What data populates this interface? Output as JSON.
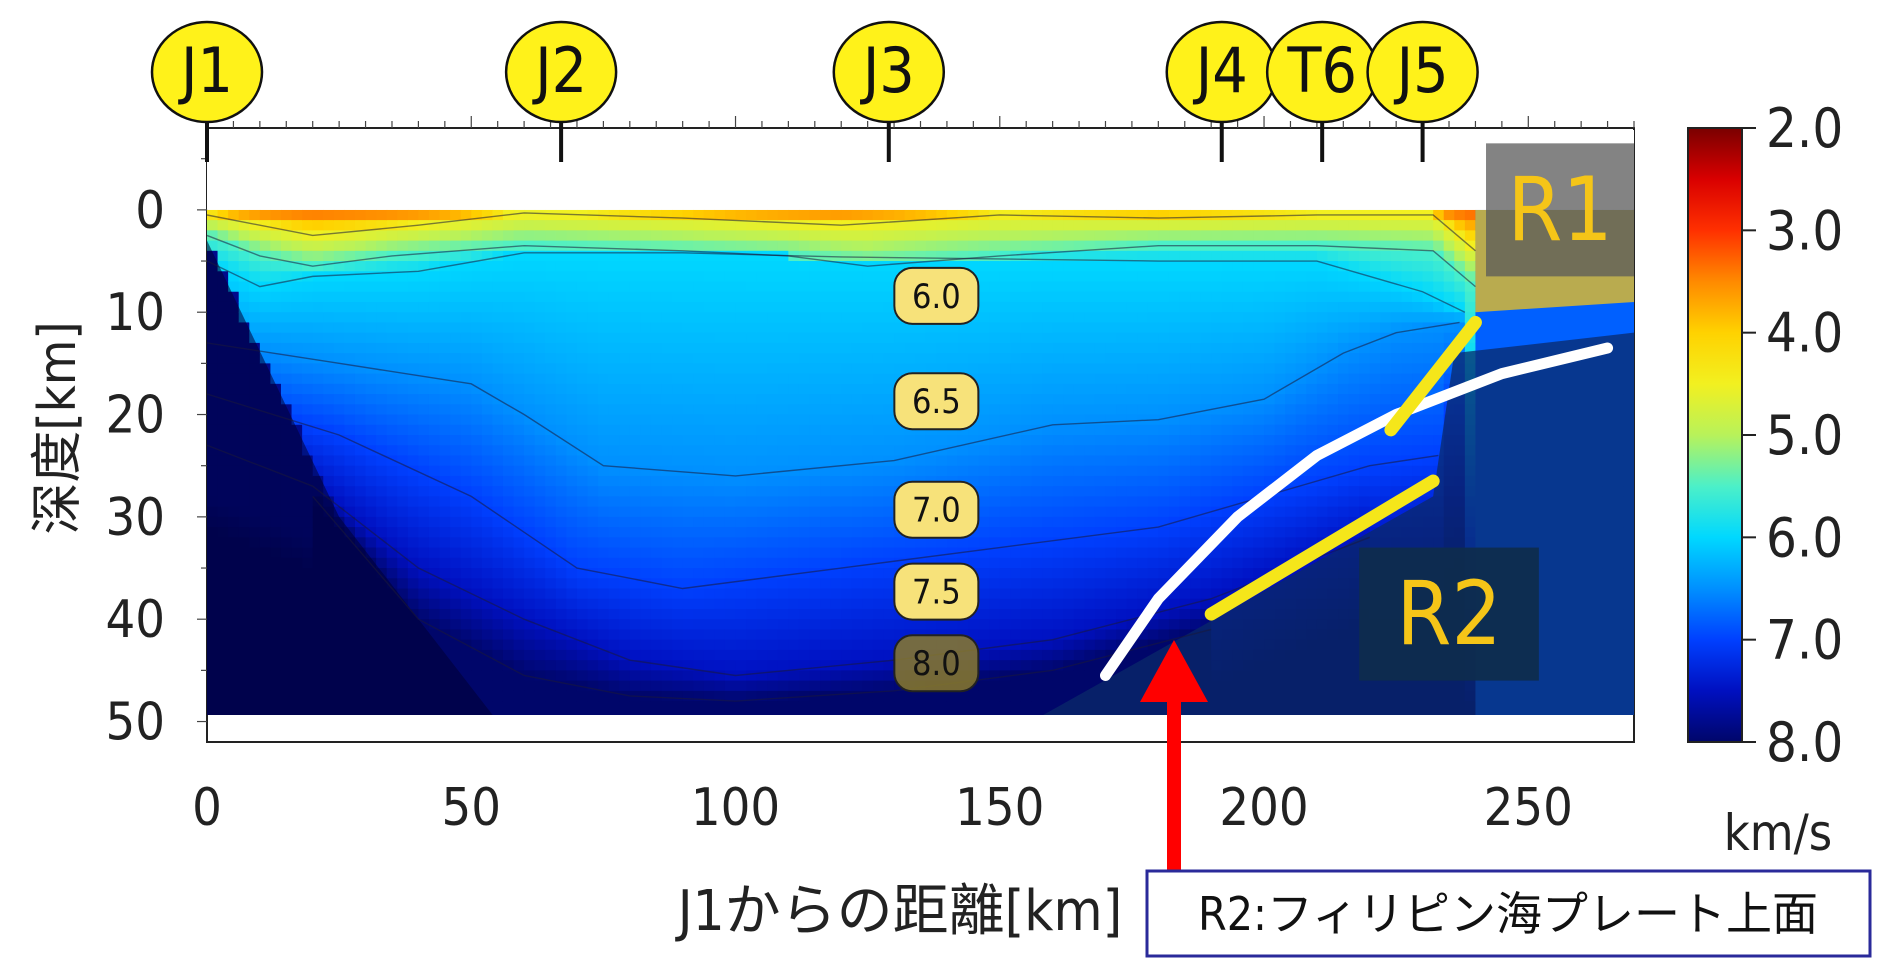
{
  "chart_data": {
    "type": "heatmap",
    "title": "",
    "xlabel": "J1からの距離[km]",
    "ylabel": "深度[km]",
    "xlim": [
      0,
      270
    ],
    "ylim": [
      52,
      -8
    ],
    "xticks": [
      "0",
      "50",
      "100",
      "150",
      "200",
      "250"
    ],
    "xtick_values": [
      0,
      50,
      100,
      150,
      200,
      250
    ],
    "yticks": [
      "0",
      "10",
      "20",
      "30",
      "40",
      "50"
    ],
    "ytick_values": [
      0,
      10,
      20,
      30,
      40,
      50
    ],
    "stations": [
      {
        "label": "J1",
        "x": 0
      },
      {
        "label": "J2",
        "x": 67
      },
      {
        "label": "J3",
        "x": 129
      },
      {
        "label": "J4",
        "x": 192
      },
      {
        "label": "T6",
        "x": 211
      },
      {
        "label": "J5",
        "x": 230
      }
    ],
    "contour_labels": [
      {
        "text": "6.0",
        "x": 138,
        "y": 8.4
      },
      {
        "text": "6.5",
        "x": 138,
        "y": 18.7
      },
      {
        "text": "7.0",
        "x": 138,
        "y": 29.3
      },
      {
        "text": "7.5",
        "x": 138,
        "y": 37.3
      },
      {
        "text": "8.0",
        "x": 138,
        "y": 44.3
      }
    ],
    "contours": [
      {
        "level": 4.5,
        "x": [
          0,
          20,
          40,
          60,
          90,
          120,
          150,
          180,
          210,
          232,
          240
        ],
        "y": [
          0.5,
          2.5,
          1.5,
          0.3,
          0.8,
          1.5,
          0.5,
          0.8,
          0.5,
          0.5,
          4
        ]
      },
      {
        "level": 5.5,
        "x": [
          0,
          10,
          20,
          35,
          60,
          90,
          110,
          125,
          150,
          180,
          210,
          232,
          240
        ],
        "y": [
          2.5,
          4.5,
          5.5,
          4.5,
          3.5,
          4,
          4.5,
          5.5,
          4.5,
          3.5,
          3.5,
          4,
          7.5
        ]
      },
      {
        "level": 6.0,
        "x": [
          0,
          10,
          20,
          40,
          60,
          90,
          120,
          150,
          180,
          210,
          230,
          238
        ],
        "y": [
          5,
          7.5,
          6.5,
          6,
          4.2,
          4.2,
          4.6,
          4.8,
          5,
          5,
          8,
          10
        ]
      },
      {
        "level": 6.5,
        "x": [
          0,
          25,
          50,
          60,
          75,
          100,
          130,
          160,
          180,
          200,
          215,
          225,
          237
        ],
        "y": [
          13,
          15,
          17,
          20,
          25,
          26,
          24.5,
          21,
          20.5,
          18.5,
          14,
          12,
          11
        ]
      },
      {
        "level": 7.0,
        "x": [
          0,
          25,
          50,
          70,
          90,
          120,
          150,
          180,
          200,
          220,
          233
        ],
        "y": [
          18,
          22,
          28,
          35,
          37,
          35,
          33,
          31,
          28,
          25,
          24
        ]
      },
      {
        "level": 7.5,
        "x": [
          0,
          20,
          40,
          60,
          80,
          100,
          130,
          160,
          190,
          220
        ],
        "y": [
          23,
          27,
          35,
          40,
          44,
          45.5,
          44,
          42,
          38,
          32
        ]
      },
      {
        "level": 8.0,
        "x": [
          20,
          40,
          60,
          80,
          100,
          130,
          160,
          190
        ],
        "y": [
          28,
          40,
          45.5,
          47.5,
          48,
          47,
          45,
          41
        ]
      }
    ],
    "boundary_lines": [
      {
        "name": "",
        "color": "#ffffff",
        "x": [
          170,
          180,
          195,
          210,
          225,
          245,
          265
        ],
        "y": [
          45.5,
          38,
          30,
          24,
          20,
          16,
          13.5
        ]
      },
      {
        "name": "",
        "color": "#f5e61a",
        "x": [
          224,
          240
        ],
        "y": [
          21.5,
          11
        ]
      },
      {
        "name": "",
        "color": "#f5e61a",
        "x": [
          190,
          232
        ],
        "y": [
          39.5,
          26.5
        ]
      }
    ],
    "regions": [
      {
        "label": "R1",
        "x": [
          242,
          270
        ],
        "y": [
          -6.5,
          6.5
        ]
      },
      {
        "label": "R2",
        "x": [
          218,
          252
        ],
        "y": [
          33,
          46
        ]
      }
    ],
    "colorbar": {
      "min": 2.0,
      "max": 8.0,
      "ticks": [
        "2.0",
        "3.0",
        "4.0",
        "5.0",
        "6.0",
        "7.0",
        "8.0"
      ],
      "tick_values": [
        2,
        3,
        4,
        5,
        6,
        7,
        8
      ],
      "unit": "km/s",
      "stops": [
        {
          "v": 2.0,
          "color": "#7a0000"
        },
        {
          "v": 2.5,
          "color": "#d90000"
        },
        {
          "v": 3.0,
          "color": "#ff3000"
        },
        {
          "v": 3.5,
          "color": "#ff8a00"
        },
        {
          "v": 4.0,
          "color": "#ffd200"
        },
        {
          "v": 4.5,
          "color": "#f2f020"
        },
        {
          "v": 5.0,
          "color": "#b8f25a"
        },
        {
          "v": 5.5,
          "color": "#4cf0c8"
        },
        {
          "v": 6.0,
          "color": "#00d8ff"
        },
        {
          "v": 6.5,
          "color": "#0090ff"
        },
        {
          "v": 7.0,
          "color": "#0040ff"
        },
        {
          "v": 7.5,
          "color": "#0010c0"
        },
        {
          "v": 8.0,
          "color": "#00066a"
        }
      ]
    }
  },
  "arrow_color": "#ff0000",
  "annotation": {
    "text": "R2:フィリピン海プレート上面"
  }
}
